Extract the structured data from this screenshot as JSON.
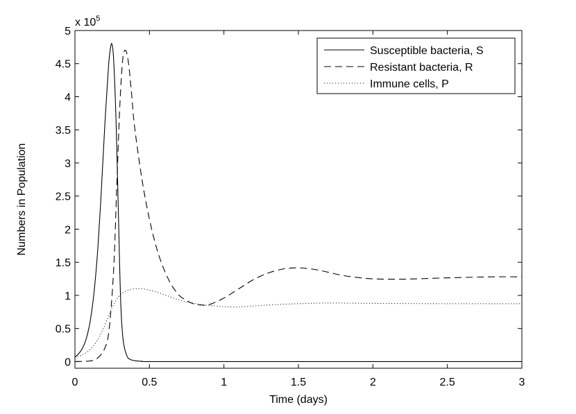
{
  "chart_data": {
    "type": "line",
    "title": "",
    "xlabel": "Time (days)",
    "ylabel": "Numbers in Population",
    "y_multiplier_label": "x 10",
    "y_multiplier_exponent": "5",
    "xlim": [
      0,
      3
    ],
    "ylim": [
      -0.1,
      5
    ],
    "xticks": [
      0,
      0.5,
      1,
      1.5,
      2,
      2.5,
      3
    ],
    "xtick_labels": [
      "0",
      "0.5",
      "1",
      "1.5",
      "2",
      "2.5",
      "3"
    ],
    "yticks": [
      0,
      0.5,
      1,
      1.5,
      2,
      2.5,
      3,
      3.5,
      4,
      4.5,
      5
    ],
    "ytick_labels": [
      "0",
      "0.5",
      "1",
      "1.5",
      "2",
      "2.5",
      "3",
      "3.5",
      "4",
      "4.5",
      "5"
    ],
    "grid": false,
    "legend_position": "top-right",
    "series": [
      {
        "name": "Susceptible bacteria, S",
        "style": "solid",
        "x": [
          0,
          0.025,
          0.05,
          0.075,
          0.1,
          0.125,
          0.15,
          0.175,
          0.2,
          0.225,
          0.24,
          0.25,
          0.26,
          0.275,
          0.29,
          0.3,
          0.31,
          0.325,
          0.35,
          0.375,
          0.4,
          0.45,
          0.5,
          1,
          1.5,
          2,
          2.5,
          3
        ],
        "values": [
          0.07,
          0.12,
          0.2,
          0.34,
          0.58,
          0.98,
          1.6,
          2.5,
          3.55,
          4.45,
          4.76,
          4.78,
          4.55,
          3.7,
          2.4,
          1.45,
          0.75,
          0.3,
          0.08,
          0.03,
          0.015,
          0.005,
          0,
          0,
          0,
          0,
          0,
          0
        ]
      },
      {
        "name": "Resistant bacteria, R",
        "style": "dashed",
        "x": [
          0,
          0.1,
          0.15,
          0.2,
          0.23,
          0.26,
          0.28,
          0.3,
          0.32,
          0.34,
          0.36,
          0.38,
          0.4,
          0.45,
          0.5,
          0.55,
          0.6,
          0.65,
          0.7,
          0.75,
          0.8,
          0.85,
          0.9,
          1,
          1.1,
          1.2,
          1.3,
          1.4,
          1.5,
          1.6,
          1.7,
          1.8,
          1.9,
          2,
          2.2,
          2.5,
          2.8,
          3
        ],
        "values": [
          0,
          0.01,
          0.05,
          0.2,
          0.5,
          1.4,
          2.6,
          3.8,
          4.55,
          4.7,
          4.5,
          4.05,
          3.55,
          2.75,
          2.15,
          1.7,
          1.38,
          1.15,
          1.0,
          0.92,
          0.87,
          0.855,
          0.86,
          0.96,
          1.1,
          1.24,
          1.34,
          1.4,
          1.415,
          1.395,
          1.35,
          1.3,
          1.27,
          1.25,
          1.245,
          1.265,
          1.28,
          1.28
        ]
      },
      {
        "name": "Immune cells, P",
        "style": "dotted",
        "x": [
          0,
          0.05,
          0.1,
          0.15,
          0.2,
          0.25,
          0.3,
          0.35,
          0.4,
          0.45,
          0.5,
          0.55,
          0.6,
          0.65,
          0.7,
          0.75,
          0.8,
          0.85,
          0.9,
          1,
          1.1,
          1.2,
          1.3,
          1.5,
          1.7,
          2,
          2.5,
          3
        ],
        "values": [
          0.07,
          0.1,
          0.18,
          0.32,
          0.55,
          0.82,
          1.0,
          1.07,
          1.1,
          1.1,
          1.08,
          1.05,
          1.01,
          0.97,
          0.93,
          0.9,
          0.88,
          0.86,
          0.85,
          0.83,
          0.825,
          0.84,
          0.855,
          0.875,
          0.885,
          0.88,
          0.875,
          0.875
        ]
      }
    ]
  }
}
